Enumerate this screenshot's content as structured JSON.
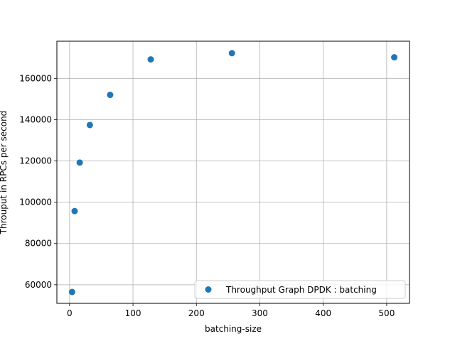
{
  "chart_data": {
    "type": "scatter",
    "title": "",
    "xlabel": "batching-size",
    "ylabel": "Throuput in RPCs per second",
    "xlim": [
      -20,
      536
    ],
    "ylim": [
      51000,
      178000
    ],
    "xticks": [
      0,
      100,
      200,
      300,
      400,
      500
    ],
    "yticks": [
      60000,
      80000,
      100000,
      120000,
      140000,
      160000
    ],
    "grid": true,
    "legend_position": "lower-right",
    "series": [
      {
        "name": "Throughput Graph DPDK : batching",
        "color": "#1f77b4",
        "x": [
          4,
          8,
          16,
          32,
          64,
          128,
          256,
          512
        ],
        "y": [
          56500,
          95700,
          119200,
          137400,
          152000,
          169200,
          172200,
          170200
        ]
      }
    ]
  }
}
